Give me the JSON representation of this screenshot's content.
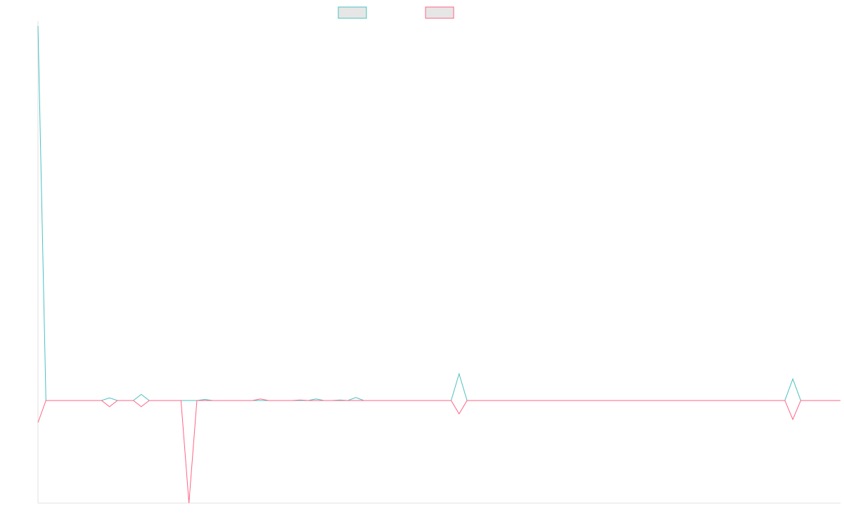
{
  "chart_data": {
    "type": "line",
    "title": "",
    "xlabel": "",
    "ylabel": "",
    "x": [
      0,
      1,
      2,
      3,
      4,
      5,
      6,
      7,
      8,
      9,
      10,
      11,
      12,
      13,
      14,
      15,
      16,
      17,
      18,
      19,
      20,
      21,
      22,
      23,
      24,
      25,
      26,
      27,
      28,
      29,
      30,
      31,
      32,
      33,
      34,
      35,
      36,
      37,
      38,
      39,
      40,
      41,
      42,
      43,
      44,
      45,
      46,
      47,
      48,
      49,
      50,
      51,
      52,
      53,
      54,
      55,
      56,
      57,
      58,
      59,
      60,
      61,
      62,
      63,
      64,
      65,
      66,
      67,
      68,
      69,
      70,
      71,
      72,
      73,
      74,
      75,
      76,
      77,
      78,
      79,
      80,
      81,
      82,
      83,
      84,
      85,
      86,
      87,
      88,
      89,
      90,
      91,
      92,
      93,
      94,
      95,
      96,
      97,
      98,
      99,
      100,
      101
    ],
    "xlim": [
      0,
      101
    ],
    "ylim": [
      -20,
      73
    ],
    "grid": false,
    "legend": {
      "position": "top-center"
    },
    "series": [
      {
        "name": "",
        "color": "#4bc0c0",
        "values": [
          73,
          0,
          0,
          0,
          0,
          0,
          0,
          0,
          0,
          0.5,
          0,
          0,
          0,
          1.2,
          0,
          0,
          0,
          0,
          0,
          0,
          0,
          0.2,
          0,
          0,
          0,
          0,
          0,
          0,
          0,
          0,
          0,
          0,
          0,
          0,
          0,
          0.3,
          0,
          0,
          0.1,
          0,
          0.6,
          0,
          0,
          0,
          0,
          0,
          0,
          0,
          0,
          0,
          0,
          0,
          0,
          5.2,
          0,
          0,
          0,
          0,
          0,
          0,
          0,
          0,
          0,
          0,
          0,
          0,
          0,
          0,
          0,
          0,
          0,
          0,
          0,
          0,
          0,
          0,
          0,
          0,
          0,
          0,
          0,
          0,
          0,
          0,
          0,
          0,
          0,
          0,
          0,
          0,
          0,
          0,
          0,
          0,
          0,
          4.2,
          0,
          0,
          0,
          0,
          0,
          0
        ]
      },
      {
        "name": "",
        "color": "#ff6384",
        "values": [
          -4.3,
          0,
          0,
          0,
          0,
          0,
          0,
          0,
          0,
          -1.2,
          0,
          0,
          0,
          -1.2,
          0,
          0,
          0,
          0,
          0,
          -20,
          0,
          0,
          0,
          0,
          0,
          0,
          0,
          0,
          0.3,
          0,
          0,
          0,
          0,
          0.1,
          0,
          0,
          0,
          0,
          0,
          0,
          0,
          0,
          0,
          0,
          0,
          0,
          0,
          0,
          0,
          0,
          0,
          0,
          0,
          -2.6,
          0,
          0,
          0,
          0,
          0,
          0,
          0,
          0,
          0,
          0,
          0,
          0,
          0,
          0,
          0,
          0,
          0,
          0,
          0,
          0,
          0,
          0,
          0,
          0,
          0,
          0,
          0,
          0,
          0,
          0,
          0,
          0,
          0,
          0,
          0,
          0,
          0,
          0,
          0,
          0,
          0,
          -3.7,
          0,
          0,
          0,
          0,
          0,
          0
        ]
      }
    ]
  }
}
